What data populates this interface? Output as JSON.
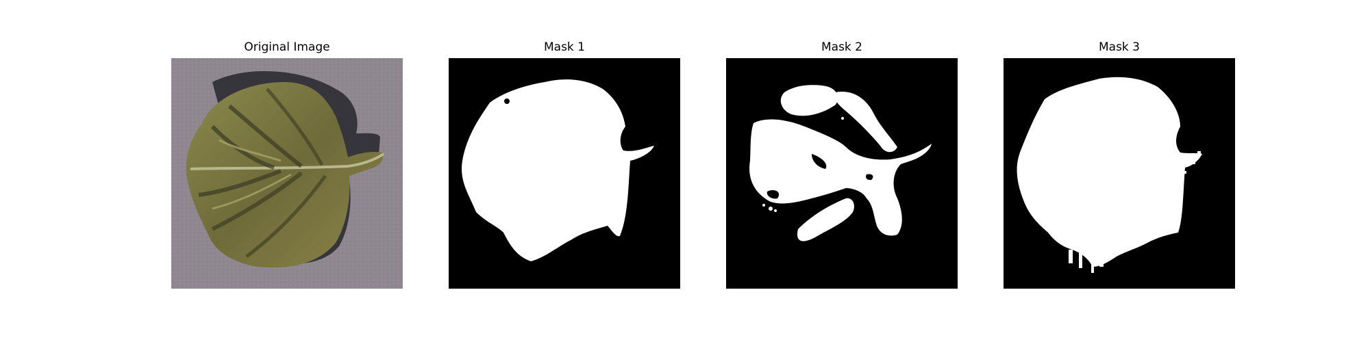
{
  "figure": {
    "panels": [
      {
        "title": "Original Image",
        "kind": "photo"
      },
      {
        "title": "Mask 1",
        "kind": "binary-mask"
      },
      {
        "title": "Mask 2",
        "kind": "binary-mask"
      },
      {
        "title": "Mask 3",
        "kind": "binary-mask"
      }
    ],
    "colors": {
      "mask_foreground": "#ffffff",
      "mask_background": "#000000",
      "photo_background": "#8f8790",
      "leaf_green": "#7c7a43"
    }
  }
}
